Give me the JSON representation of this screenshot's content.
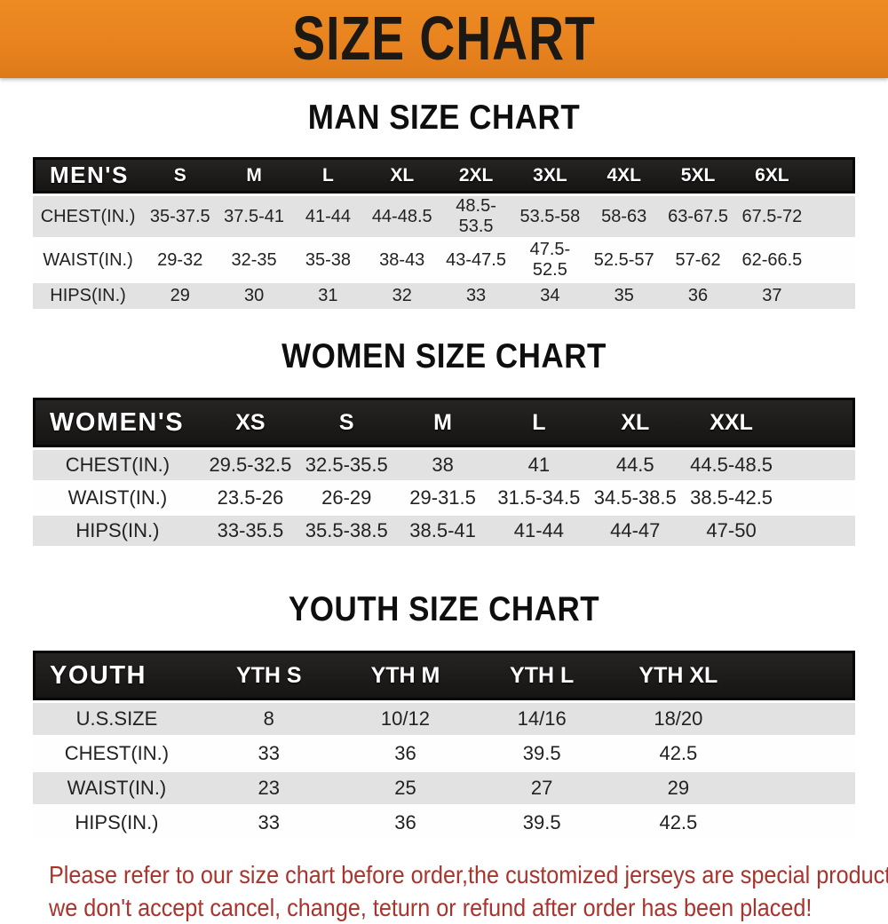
{
  "banner": {
    "title": "SIZE CHART",
    "bg_color": "#E8831F",
    "text_color": "#1C1914"
  },
  "sections": [
    {
      "title": "MAN SIZE CHART",
      "header_label": "MEN'S",
      "columns": [
        "S",
        "M",
        "L",
        "XL",
        "2XL",
        "3XL",
        "4XL",
        "5XL",
        "6XL"
      ],
      "rows": [
        {
          "label": "CHEST(IN.)",
          "values": [
            "35-37.5",
            "37.5-41",
            "41-44",
            "44-48.5",
            "48.5-53.5",
            "53.5-58",
            "58-63",
            "63-67.5",
            "67.5-72"
          ]
        },
        {
          "label": "WAIST(IN.)",
          "values": [
            "29-32",
            "32-35",
            "35-38",
            "38-43",
            "43-47.5",
            "47.5-52.5",
            "52.5-57",
            "57-62",
            "62-66.5"
          ]
        },
        {
          "label": "HIPS(IN.)",
          "values": [
            "29",
            "30",
            "31",
            "32",
            "33",
            "34",
            "35",
            "36",
            "37"
          ]
        }
      ]
    },
    {
      "title": "WOMEN SIZE CHART",
      "header_label": "WOMEN'S",
      "columns": [
        "XS",
        "S",
        "M",
        "L",
        "XL",
        "XXL"
      ],
      "rows": [
        {
          "label": "CHEST(IN.)",
          "values": [
            "29.5-32.5",
            "32.5-35.5",
            "38",
            "41",
            "44.5",
            "44.5-48.5"
          ]
        },
        {
          "label": "WAIST(IN.)",
          "values": [
            "23.5-26",
            "26-29",
            "29-31.5",
            "31.5-34.5",
            "34.5-38.5",
            "38.5-42.5"
          ]
        },
        {
          "label": "HIPS(IN.)",
          "values": [
            "33-35.5",
            "35.5-38.5",
            "38.5-41",
            "41-44",
            "44-47",
            "47-50"
          ]
        }
      ]
    },
    {
      "title": "YOUTH SIZE CHART",
      "header_label": "YOUTH",
      "columns": [
        "YTH S",
        "YTH M",
        "YTH L",
        "YTH XL"
      ],
      "rows": [
        {
          "label": "U.S.SIZE",
          "values": [
            "8",
            "10/12",
            "14/16",
            "18/20"
          ]
        },
        {
          "label": "CHEST(IN.)",
          "values": [
            "33",
            "36",
            "39.5",
            "42.5"
          ]
        },
        {
          "label": "WAIST(IN.)",
          "values": [
            "23",
            "25",
            "27",
            "29"
          ]
        },
        {
          "label": "HIPS(IN.)",
          "values": [
            "33",
            "36",
            "39.5",
            "42.5"
          ]
        }
      ]
    }
  ],
  "disclaimer": {
    "line1": "Please refer to our size chart before order,the customized jerseys are special products,",
    "line2": "we don't accept cancel, change, teturn or refund after order has been placed!",
    "color": "#a8342d"
  }
}
